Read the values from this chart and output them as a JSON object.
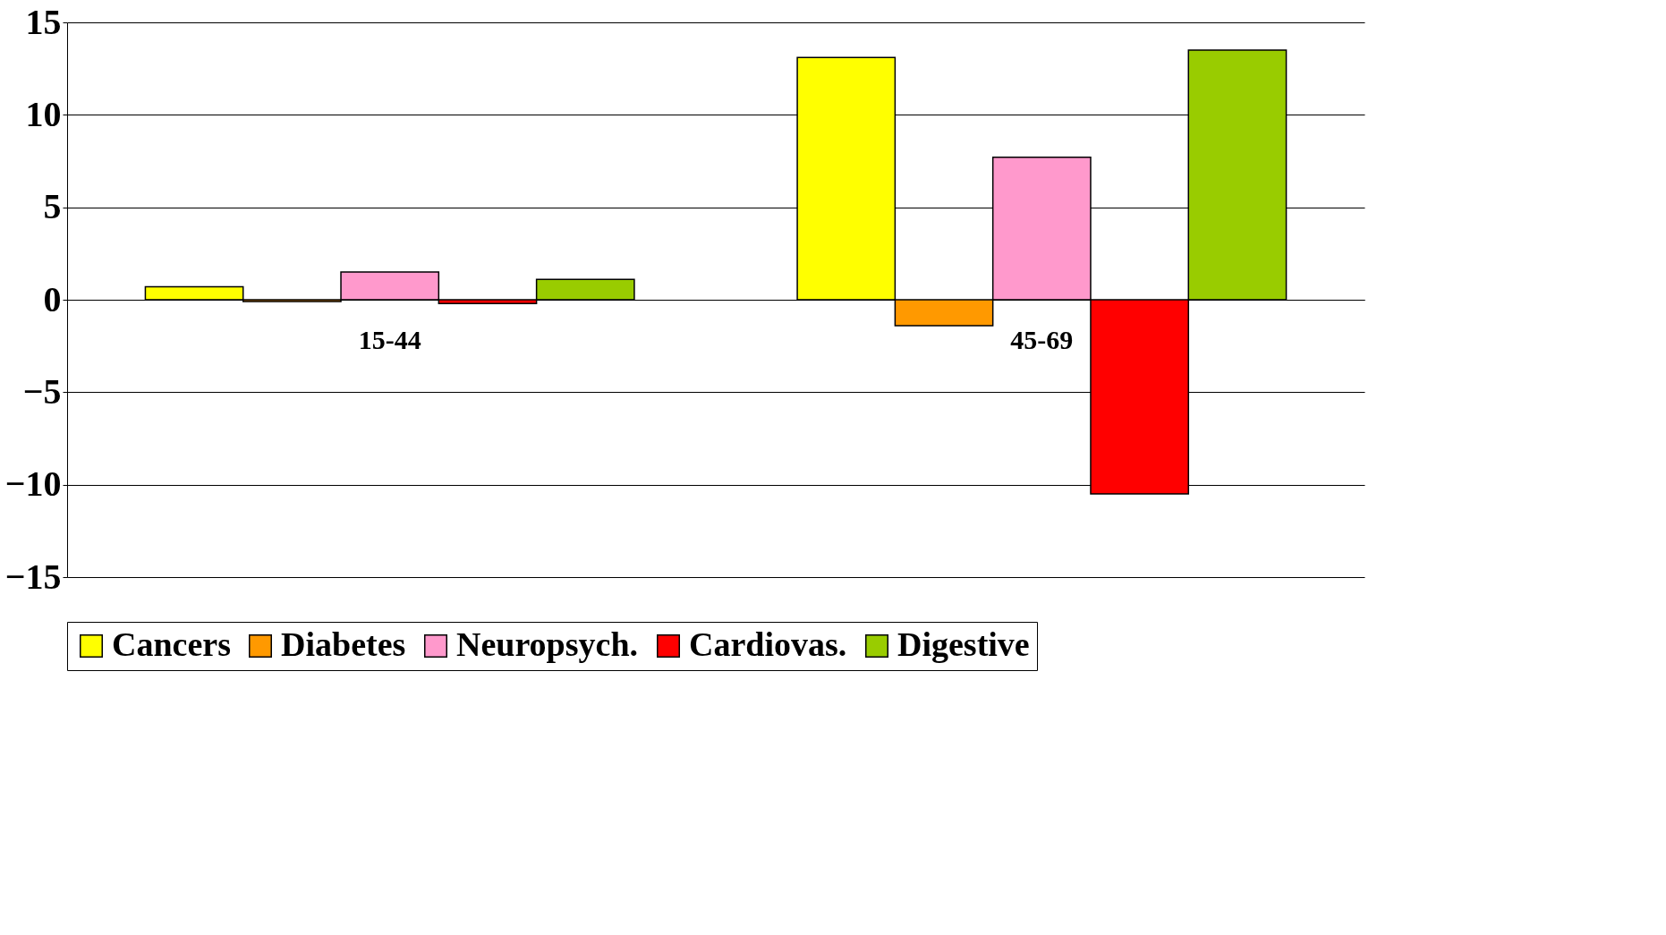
{
  "chart_data": {
    "type": "bar",
    "categories": [
      "15-44",
      "45-69"
    ],
    "series": [
      {
        "name": "Cancers",
        "color": "#ffff00",
        "values": [
          0.7,
          13.1
        ]
      },
      {
        "name": "Diabetes",
        "color": "#ff9900",
        "values": [
          -0.1,
          -1.4
        ]
      },
      {
        "name": "Neuropsych.",
        "color": "#ff99cc",
        "values": [
          1.5,
          7.7
        ]
      },
      {
        "name": "Cardiovas.",
        "color": "#ff0000",
        "values": [
          -0.2,
          -10.5
        ]
      },
      {
        "name": "Digestive",
        "color": "#99cc00",
        "values": [
          1.1,
          13.5
        ]
      }
    ],
    "ylim": [
      -15,
      15
    ],
    "yticks": [
      -15,
      -10,
      -5,
      0,
      5,
      10,
      15
    ],
    "grid": "y",
    "legend": "bottom"
  }
}
